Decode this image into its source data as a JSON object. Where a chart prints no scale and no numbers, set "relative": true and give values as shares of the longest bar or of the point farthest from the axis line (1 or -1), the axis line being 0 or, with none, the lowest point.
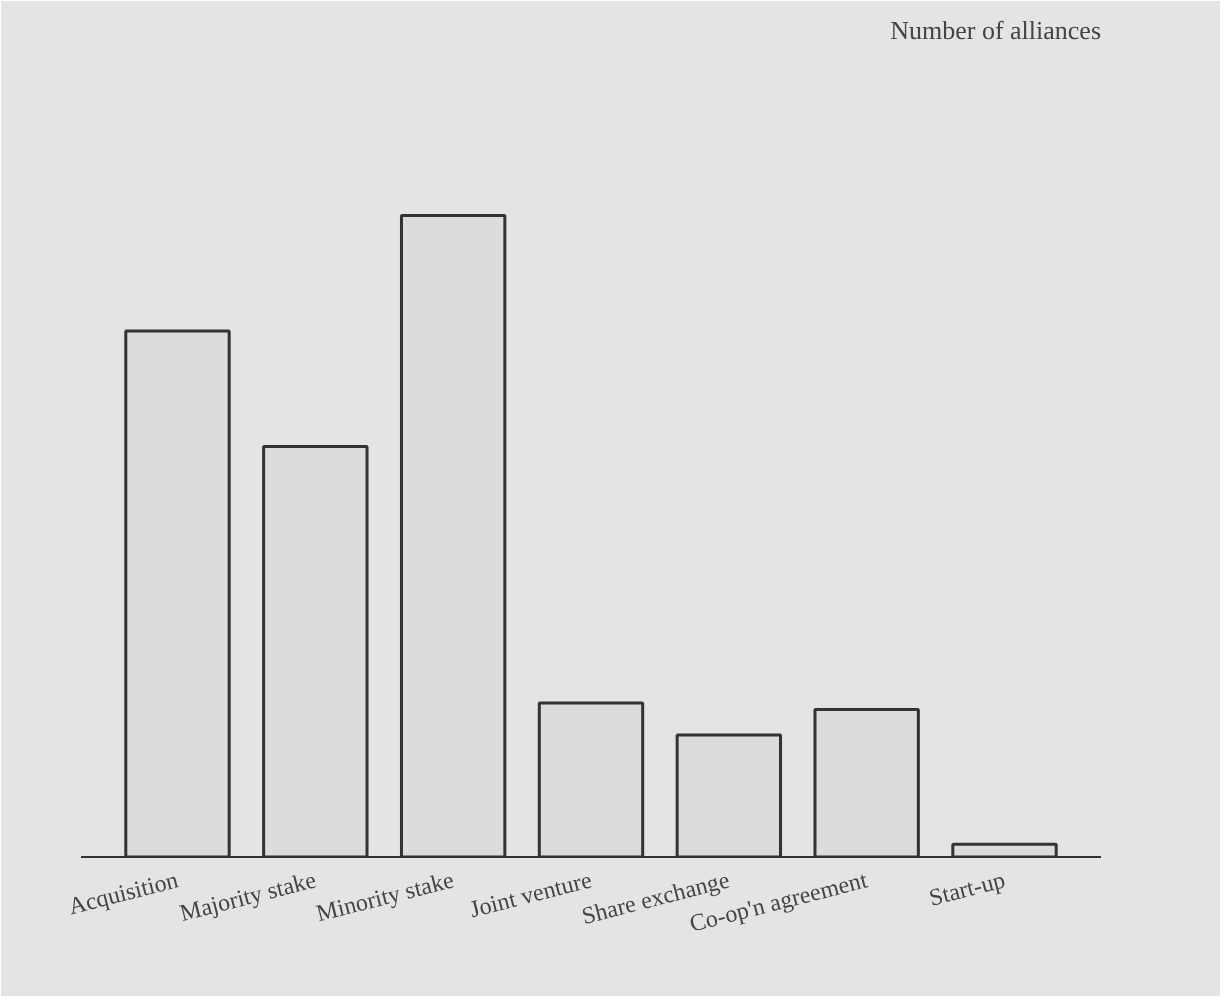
{
  "chart_data": {
    "type": "bar",
    "annotations": [
      "Number of alliances"
    ],
    "relative": true,
    "categories": [
      "Acquisition",
      "Majority stake",
      "Minority stake",
      "Joint venture",
      "Share exchange",
      "Co-op'n agreement",
      "Start-up"
    ],
    "values": [
      0.82,
      0.64,
      1,
      0.24,
      0.19,
      0.23,
      0.02
    ],
    "color": "#dcdcdc"
  }
}
